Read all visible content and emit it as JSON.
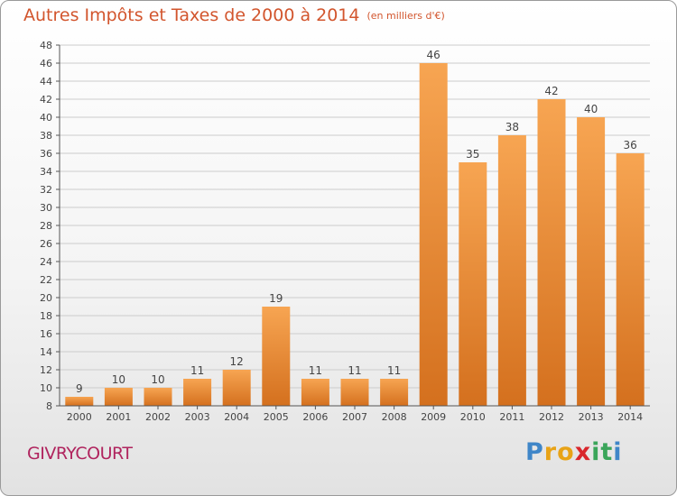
{
  "chart_data": {
    "type": "bar",
    "title": "Autres Impôts et Taxes de 2000 à 2014",
    "unit_note": "(en milliers d'€)",
    "categories": [
      "2000",
      "2001",
      "2002",
      "2003",
      "2004",
      "2005",
      "2006",
      "2007",
      "2008",
      "2009",
      "2010",
      "2011",
      "2012",
      "2013",
      "2014"
    ],
    "values": [
      9,
      10,
      10,
      11,
      12,
      19,
      11,
      11,
      11,
      46,
      35,
      38,
      42,
      40,
      36
    ],
    "ylim": [
      8,
      48
    ],
    "yticks": [
      8,
      10,
      12,
      14,
      16,
      18,
      20,
      22,
      24,
      26,
      28,
      30,
      32,
      34,
      36,
      38,
      40,
      42,
      44,
      46,
      48
    ],
    "grid": true,
    "bar_color_light": "#f7a552",
    "bar_color_dark": "#d4701e"
  },
  "town": "GIVRYCOURT",
  "logo": {
    "letters": [
      "P",
      "r",
      "o",
      "x",
      "i",
      "t",
      "i"
    ],
    "colors": [
      "#3f86c8",
      "#e8a317",
      "#e8a317",
      "#d9262c",
      "#3aa55a",
      "#3aa55a",
      "#3f86c8"
    ]
  },
  "colors": {
    "title": "#d2552d",
    "town": "#b0245e",
    "grid": "#cccccc"
  }
}
